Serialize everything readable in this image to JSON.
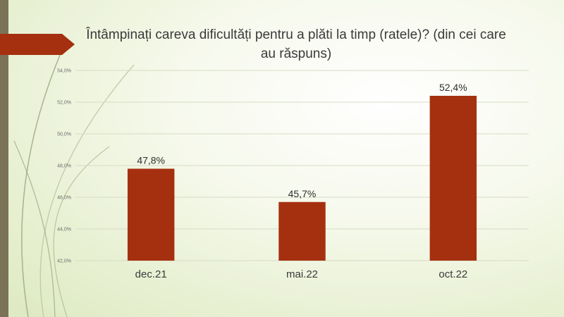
{
  "colors": {
    "bar": "#a5300f",
    "banner": "#a5300f",
    "band": "#7a7358",
    "grid": "#d6dcc4"
  },
  "chart_data": {
    "type": "bar",
    "title": "Întâmpinați careva dificultăți pentru a plăti la timp (ratele)? (din cei care au răspuns)",
    "categories": [
      "dec.21",
      "mai.22",
      "oct.22"
    ],
    "values": [
      47.8,
      45.7,
      52.4
    ],
    "data_labels": [
      "47,8%",
      "45,7%",
      "52,4%"
    ],
    "ylim": [
      42,
      54
    ],
    "yticks": [
      42,
      44,
      46,
      48,
      50,
      52,
      54
    ],
    "ytick_labels": [
      "42,0%",
      "44,0%",
      "46,0%",
      "48,0%",
      "50,0%",
      "52,0%",
      "54,0%"
    ],
    "xlabel": "",
    "ylabel": "",
    "grid": true,
    "legend": "none"
  }
}
